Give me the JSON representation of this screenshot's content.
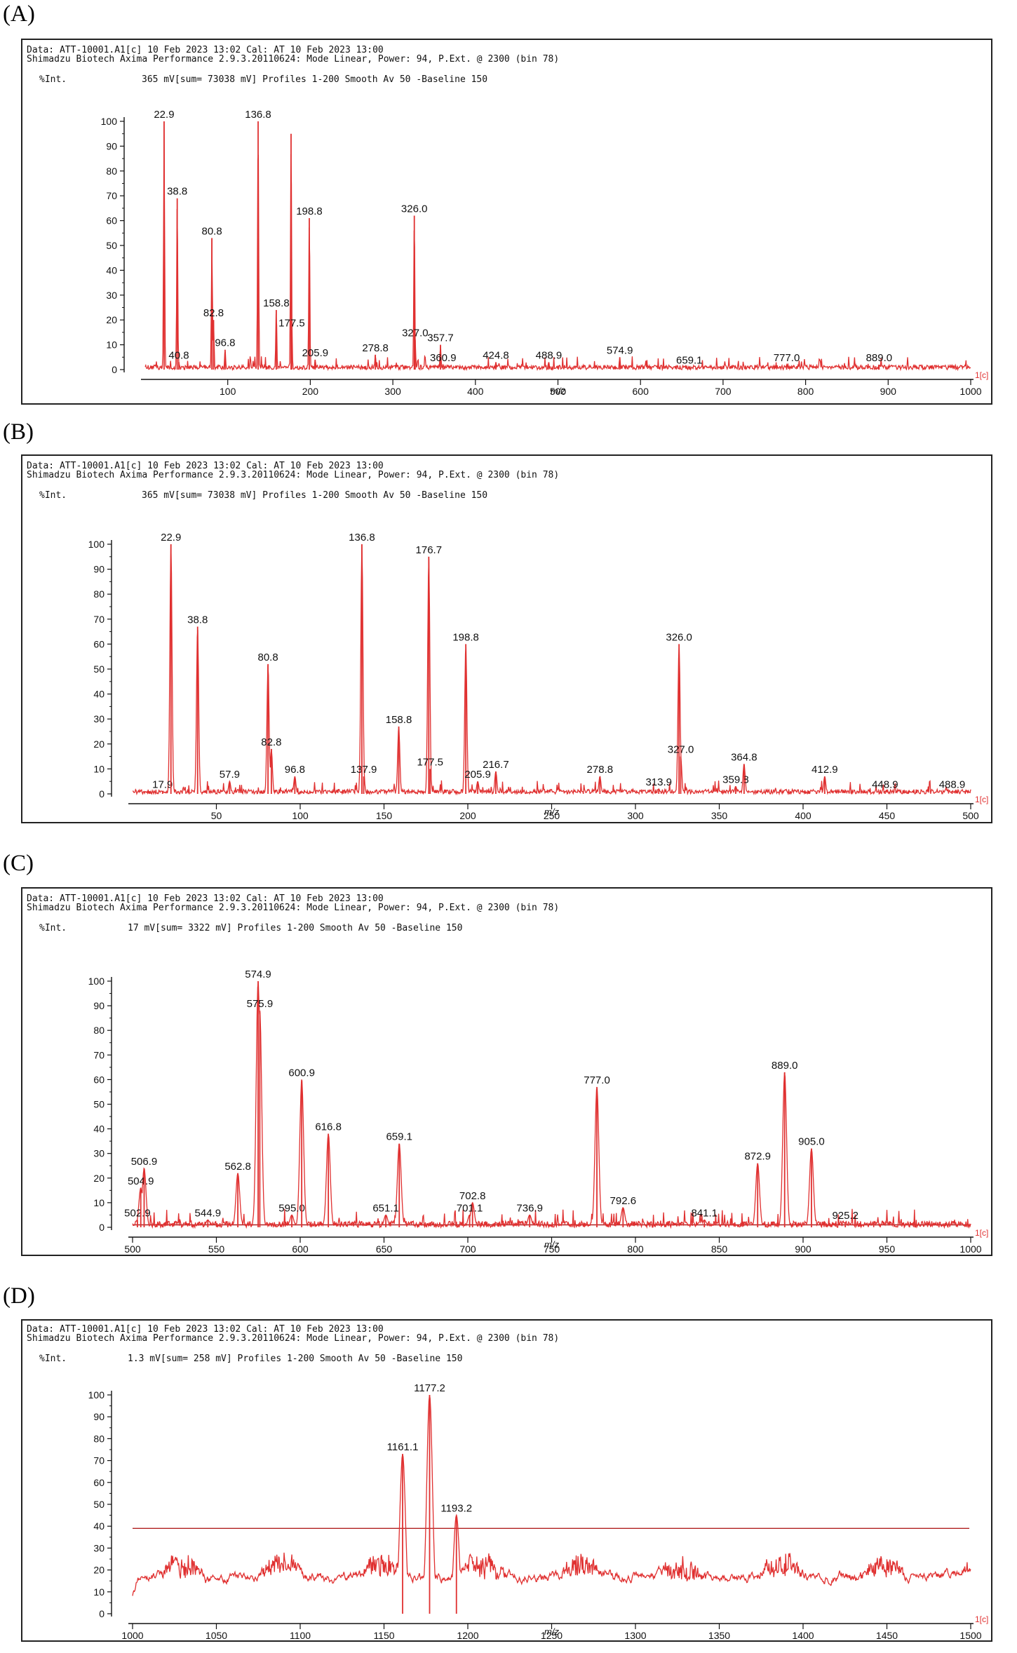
{
  "panels": [
    {
      "label": "(A)",
      "header": {
        "line1": "Data: ATT-10001.A1[c] 10 Feb 2023 13:02 Cal: AT 10 Feb 2023 13:00",
        "line2": "Shimadzu Biotech Axima Performance 2.9.3.20110624: Mode Linear, Power: 94, P.Ext. @ 2300 (bin 78)",
        "ylabel": "%Int.",
        "info": "365 mV[sum= 73038 mV]  Profiles 1-200 Smooth Av 50 -Baseline 150"
      },
      "xlabel": "m/z",
      "trace_tag": "1[c]",
      "chart_data": {
        "type": "line",
        "xlim": [
          0,
          1000
        ],
        "ylim": [
          0,
          100
        ],
        "xticks": [
          100,
          200,
          300,
          400,
          500,
          600,
          700,
          800,
          900,
          1000
        ],
        "yticks": [
          0,
          10,
          20,
          30,
          40,
          50,
          60,
          70,
          80,
          90,
          100
        ],
        "peaks": [
          {
            "x": 22.9,
            "y": 100,
            "label": "22.9"
          },
          {
            "x": 38.8,
            "y": 69,
            "label": "38.8"
          },
          {
            "x": 80.8,
            "y": 53,
            "label": "80.8"
          },
          {
            "x": 82.8,
            "y": 20,
            "label": "82.8"
          },
          {
            "x": 96.8,
            "y": 8,
            "label": "96.8"
          },
          {
            "x": 40.8,
            "y": 3,
            "label": "40.8"
          },
          {
            "x": 136.8,
            "y": 100,
            "label": "136.8"
          },
          {
            "x": 158.8,
            "y": 24,
            "label": "158.8"
          },
          {
            "x": 176.7,
            "y": 95,
            "label": ""
          },
          {
            "x": 177.5,
            "y": 16,
            "label": "177.5"
          },
          {
            "x": 198.8,
            "y": 61,
            "label": "198.8"
          },
          {
            "x": 205.9,
            "y": 4,
            "label": "205.9"
          },
          {
            "x": 278.8,
            "y": 6,
            "label": "278.8"
          },
          {
            "x": 326.0,
            "y": 62,
            "label": "326.0"
          },
          {
            "x": 327.0,
            "y": 12,
            "label": "327.0"
          },
          {
            "x": 357.7,
            "y": 10,
            "label": "357.7"
          },
          {
            "x": 360.9,
            "y": 2,
            "label": "360.9"
          },
          {
            "x": 424.8,
            "y": 3,
            "label": "424.8"
          },
          {
            "x": 488.9,
            "y": 3,
            "label": "488.9"
          },
          {
            "x": 574.9,
            "y": 5,
            "label": "574.9"
          },
          {
            "x": 659.1,
            "y": 1,
            "label": "659.1"
          },
          {
            "x": 777.0,
            "y": 2,
            "label": "777.0"
          },
          {
            "x": 889.0,
            "y": 2,
            "label": "889.0"
          }
        ]
      }
    },
    {
      "label": "(B)",
      "header": {
        "line1": "Data: ATT-10001.A1[c] 10 Feb 2023 13:02 Cal: AT 10 Feb 2023 13:00",
        "line2": "Shimadzu Biotech Axima Performance 2.9.3.20110624: Mode Linear, Power: 94, P.Ext. @ 2300 (bin 78)",
        "ylabel": "%Int.",
        "info": "365 mV[sum= 73038 mV]  Profiles 1-200 Smooth Av 50 -Baseline 150"
      },
      "xlabel": "m/z",
      "trace_tag": "1[c]",
      "chart_data": {
        "type": "line",
        "xlim": [
          0,
          500
        ],
        "ylim": [
          0,
          100
        ],
        "xticks": [
          50,
          100,
          150,
          200,
          250,
          300,
          350,
          400,
          450,
          500
        ],
        "yticks": [
          0,
          10,
          20,
          30,
          40,
          50,
          60,
          70,
          80,
          90,
          100
        ],
        "peaks": [
          {
            "x": 17.9,
            "y": 1,
            "label": "17.9"
          },
          {
            "x": 22.9,
            "y": 100,
            "label": "22.9"
          },
          {
            "x": 38.8,
            "y": 67,
            "label": "38.8"
          },
          {
            "x": 57.9,
            "y": 5,
            "label": "57.9"
          },
          {
            "x": 80.8,
            "y": 52,
            "label": "80.8"
          },
          {
            "x": 82.8,
            "y": 18,
            "label": "82.8"
          },
          {
            "x": 96.8,
            "y": 7,
            "label": "96.8"
          },
          {
            "x": 137.9,
            "y": 7,
            "label": "137.9"
          },
          {
            "x": 136.8,
            "y": 100,
            "label": "136.8"
          },
          {
            "x": 158.8,
            "y": 27,
            "label": "158.8"
          },
          {
            "x": 176.7,
            "y": 95,
            "label": "176.7"
          },
          {
            "x": 177.5,
            "y": 10,
            "label": "177.5"
          },
          {
            "x": 198.8,
            "y": 60,
            "label": "198.8"
          },
          {
            "x": 205.9,
            "y": 5,
            "label": "205.9"
          },
          {
            "x": 216.7,
            "y": 9,
            "label": "216.7"
          },
          {
            "x": 278.8,
            "y": 7,
            "label": "278.8"
          },
          {
            "x": 313.9,
            "y": 2,
            "label": "313.9"
          },
          {
            "x": 326.0,
            "y": 60,
            "label": "326.0"
          },
          {
            "x": 327.0,
            "y": 15,
            "label": "327.0"
          },
          {
            "x": 359.8,
            "y": 3,
            "label": "359.8"
          },
          {
            "x": 364.8,
            "y": 12,
            "label": "364.8"
          },
          {
            "x": 412.9,
            "y": 7,
            "label": "412.9"
          },
          {
            "x": 448.9,
            "y": 1,
            "label": "448.9"
          },
          {
            "x": 488.9,
            "y": 1,
            "label": "488.9"
          }
        ]
      }
    },
    {
      "label": "(C)",
      "header": {
        "line1": "Data: ATT-10001.A1[c] 10 Feb 2023 13:02 Cal: AT 10 Feb 2023 13:00",
        "line2": "Shimadzu Biotech Axima Performance 2.9.3.20110624: Mode Linear, Power: 94, P.Ext. @ 2300 (bin 78)",
        "ylabel": "%Int.",
        "info": "17 mV[sum= 3322 mV]  Profiles 1-200 Smooth Av 50 -Baseline 150"
      },
      "xlabel": "m/z",
      "trace_tag": "1[c]",
      "chart_data": {
        "type": "line",
        "xlim": [
          500,
          1000
        ],
        "ylim": [
          0,
          100
        ],
        "xticks": [
          500,
          550,
          600,
          650,
          700,
          750,
          800,
          850,
          900,
          950,
          1000
        ],
        "yticks": [
          0,
          10,
          20,
          30,
          40,
          50,
          60,
          70,
          80,
          90,
          100
        ],
        "threshold": 1,
        "peaks": [
          {
            "x": 502.9,
            "y": 3,
            "label": "502.9"
          },
          {
            "x": 504.9,
            "y": 16,
            "label": "504.9"
          },
          {
            "x": 506.9,
            "y": 24,
            "label": "506.9"
          },
          {
            "x": 544.9,
            "y": 3,
            "label": "544.9"
          },
          {
            "x": 562.8,
            "y": 22,
            "label": "562.8"
          },
          {
            "x": 574.9,
            "y": 100,
            "label": "574.9"
          },
          {
            "x": 575.9,
            "y": 88,
            "label": "575.9"
          },
          {
            "x": 595.0,
            "y": 5,
            "label": "595.0"
          },
          {
            "x": 600.9,
            "y": 60,
            "label": "600.9"
          },
          {
            "x": 616.8,
            "y": 38,
            "label": "616.8"
          },
          {
            "x": 651.1,
            "y": 5,
            "label": "651.1"
          },
          {
            "x": 659.1,
            "y": 34,
            "label": "659.1"
          },
          {
            "x": 701.1,
            "y": 5,
            "label": "701.1"
          },
          {
            "x": 702.8,
            "y": 10,
            "label": "702.8"
          },
          {
            "x": 736.9,
            "y": 5,
            "label": "736.9"
          },
          {
            "x": 777.0,
            "y": 57,
            "label": "777.0"
          },
          {
            "x": 792.6,
            "y": 8,
            "label": "792.6"
          },
          {
            "x": 841.1,
            "y": 3,
            "label": "841.1"
          },
          {
            "x": 872.9,
            "y": 26,
            "label": "872.9"
          },
          {
            "x": 889.0,
            "y": 63,
            "label": "889.0"
          },
          {
            "x": 905.0,
            "y": 32,
            "label": "905.0"
          },
          {
            "x": 925.2,
            "y": 2,
            "label": "925.2"
          }
        ]
      }
    },
    {
      "label": "(D)",
      "header": {
        "line1": "Data: ATT-10001.A1[c] 10 Feb 2023 13:02 Cal: AT 10 Feb 2023 13:00",
        "line2": "Shimadzu Biotech Axima Performance 2.9.3.20110624: Mode Linear, Power: 94, P.Ext. @ 2300 (bin 78)",
        "ylabel": "%Int.",
        "info": "1.3 mV[sum= 258 mV]  Profiles 1-200 Smooth Av 50 -Baseline 150"
      },
      "xlabel": "m/z",
      "trace_tag": "1[c]",
      "chart_data": {
        "type": "line",
        "xlim": [
          1000,
          1500
        ],
        "ylim": [
          0,
          100
        ],
        "xticks": [
          1000,
          1050,
          1100,
          1150,
          1200,
          1250,
          1300,
          1350,
          1400,
          1450,
          1500
        ],
        "yticks": [
          0,
          10,
          20,
          30,
          40,
          50,
          60,
          70,
          80,
          90,
          100
        ],
        "threshold": 39,
        "peaks": [
          {
            "x": 1161.1,
            "y": 73,
            "label": "1161.1"
          },
          {
            "x": 1177.2,
            "y": 100,
            "label": "1177.2"
          },
          {
            "x": 1193.2,
            "y": 45,
            "label": "1193.2"
          }
        ]
      }
    }
  ]
}
